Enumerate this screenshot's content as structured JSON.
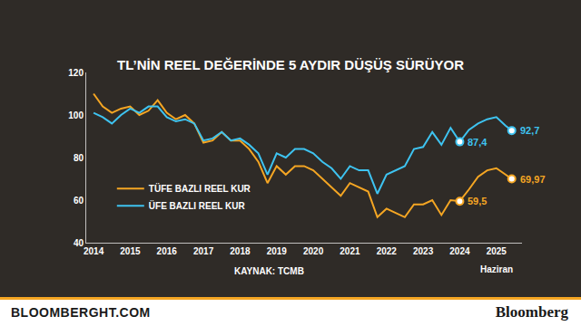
{
  "chart_data": {
    "type": "line",
    "title": "TL’NİN REEL DEĞERİNDE 5 AYDIR DÜŞÜŞ SÜRÜYOR",
    "source": "KAYNAK: TCMB",
    "footer_left": "BLOOMBERGHT.COM",
    "footer_right": "Bloomberg",
    "x": [
      2014,
      2014.25,
      2014.5,
      2014.75,
      2015,
      2015.25,
      2015.5,
      2015.75,
      2016,
      2016.25,
      2016.5,
      2016.75,
      2017,
      2017.25,
      2017.5,
      2017.75,
      2018,
      2018.25,
      2018.5,
      2018.75,
      2019,
      2019.25,
      2019.5,
      2019.75,
      2020,
      2020.25,
      2020.5,
      2020.75,
      2021,
      2021.25,
      2021.5,
      2021.75,
      2022,
      2022.25,
      2022.5,
      2022.75,
      2023,
      2023.25,
      2023.5,
      2023.75,
      2024,
      2024.25,
      2024.5,
      2024.75,
      2025,
      2025.25,
      2025.42
    ],
    "series": [
      {
        "name": "TÜFE BAZLI REEL KUR",
        "color": "#f5a623",
        "values": [
          110,
          104,
          101,
          103,
          104,
          100,
          102,
          107,
          101,
          98,
          100,
          96,
          87,
          88,
          92,
          88,
          88,
          84,
          78,
          68,
          76,
          72,
          76,
          76,
          74,
          70,
          66,
          62,
          68,
          66,
          64,
          52,
          56,
          54,
          52,
          58,
          58,
          60,
          53,
          60,
          59.5,
          65,
          71,
          74,
          75,
          72,
          69.97
        ]
      },
      {
        "name": "ÜFE BAZLI REEL KUR",
        "color": "#3ec3f0",
        "values": [
          101,
          99,
          96,
          100,
          103,
          101,
          104,
          104,
          99,
          97,
          98,
          96,
          88,
          89,
          92,
          88,
          89,
          86,
          82,
          72,
          82,
          80,
          84,
          84,
          82,
          78,
          75,
          70,
          76,
          74,
          74,
          63,
          72,
          74,
          76,
          84,
          85,
          92,
          86,
          94,
          87.4,
          93,
          96,
          98,
          99,
          95,
          92.7
        ]
      }
    ],
    "point_labels": [
      {
        "text": "92,7",
        "x": 2025.42,
        "y": 92.7,
        "color": "#3ec3f0"
      },
      {
        "text": "87,4",
        "x": 2024,
        "y": 87.4,
        "color": "#3ec3f0"
      },
      {
        "text": "69,97",
        "x": 2025.42,
        "y": 69.97,
        "color": "#f5a623"
      },
      {
        "text": "59,5",
        "x": 2024,
        "y": 59.5,
        "color": "#f5a623"
      }
    ],
    "x_note": {
      "text": "Haziran",
      "x": 2025
    },
    "xlim": [
      2013.8,
      2025.7
    ],
    "xticks": [
      2014,
      2015,
      2016,
      2017,
      2018,
      2019,
      2020,
      2021,
      2022,
      2023,
      2024,
      2025
    ],
    "ylim": [
      40,
      120
    ],
    "yticks": [
      40,
      60,
      80,
      100,
      120
    ],
    "grid": false,
    "legend": "lower left"
  }
}
